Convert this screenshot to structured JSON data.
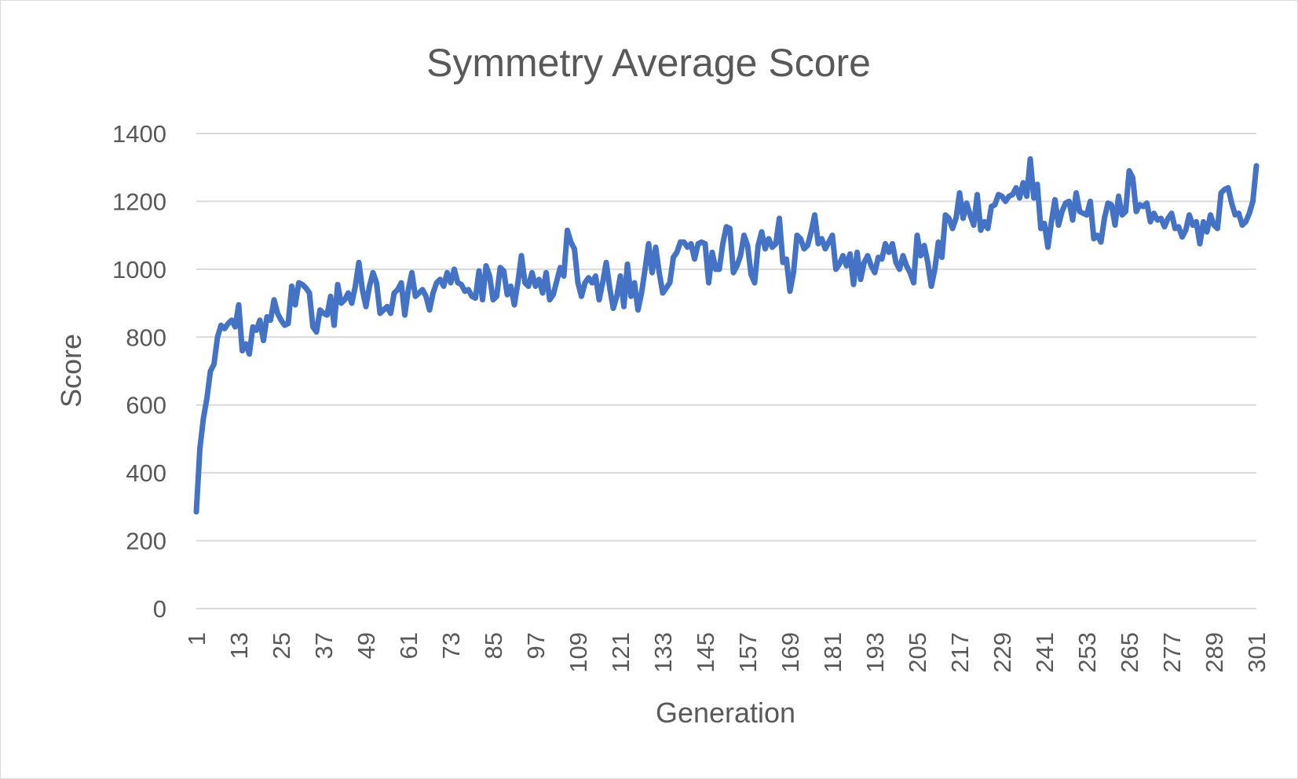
{
  "chart_data": {
    "type": "line",
    "title": "Symmetry Average Score",
    "xlabel": "Generation",
    "ylabel": "Score",
    "ylim": [
      0,
      1400
    ],
    "yticks": [
      0,
      200,
      400,
      600,
      800,
      1000,
      1200,
      1400
    ],
    "x_range": [
      1,
      301
    ],
    "xticks": [
      1,
      13,
      25,
      37,
      49,
      61,
      73,
      85,
      97,
      109,
      121,
      133,
      145,
      157,
      169,
      181,
      193,
      205,
      217,
      229,
      241,
      253,
      265,
      277,
      289,
      301
    ],
    "grid": "horizontal",
    "legend": "none",
    "series_color": "#4472c4",
    "series": [
      {
        "x": [
          1,
          2,
          3,
          4,
          5,
          6,
          7,
          8,
          9,
          10,
          11,
          12,
          13,
          14,
          15,
          16,
          17,
          18,
          19,
          20,
          21,
          22,
          23,
          24,
          25,
          26,
          27,
          28,
          29,
          30,
          31,
          32,
          33,
          34,
          35,
          36,
          37,
          38,
          39,
          40,
          41,
          42,
          43,
          44,
          45,
          46,
          47,
          48,
          49,
          50,
          51,
          52,
          53,
          54,
          55,
          56,
          57,
          58,
          59,
          60,
          61,
          62,
          63,
          64,
          65,
          66,
          67,
          68,
          69,
          70,
          71,
          72,
          73,
          74,
          75,
          76,
          77,
          78,
          79,
          80,
          81,
          82,
          83,
          84,
          85,
          86,
          87,
          88,
          89,
          90,
          91,
          92,
          93,
          94,
          95,
          96,
          97,
          98,
          99,
          100,
          101,
          102,
          103,
          104,
          105,
          106,
          107,
          108,
          109,
          110,
          111,
          112,
          113,
          114,
          115,
          116,
          117,
          118,
          119,
          120,
          121,
          122,
          123,
          124,
          125,
          126,
          127,
          128,
          129,
          130,
          131,
          132,
          133,
          134,
          135,
          136,
          137,
          138,
          139,
          140,
          141,
          142,
          143,
          144,
          145,
          146,
          147,
          148,
          149,
          150,
          151,
          152,
          153,
          154,
          155,
          156,
          157,
          158,
          159,
          160,
          161,
          162,
          163,
          164,
          165,
          166,
          167,
          168,
          169,
          170,
          171,
          172,
          173,
          174,
          175,
          176,
          177,
          178,
          179,
          180,
          181,
          182,
          183,
          184,
          185,
          186,
          187,
          188,
          189,
          190,
          191,
          192,
          193,
          194,
          195,
          196,
          197,
          198,
          199,
          200,
          201,
          202,
          203,
          204,
          205,
          206,
          207,
          208,
          209,
          210,
          211,
          212,
          213,
          214,
          215,
          216,
          217,
          218,
          219,
          220,
          221,
          222,
          223,
          224,
          225,
          226,
          227,
          228,
          229,
          230,
          231,
          232,
          233,
          234,
          235,
          236,
          237,
          238,
          239,
          240,
          241,
          242,
          243,
          244,
          245,
          246,
          247,
          248,
          249,
          250,
          251,
          252,
          253,
          254,
          255,
          256,
          257,
          258,
          259,
          260,
          261,
          262,
          263,
          264,
          265,
          266,
          267,
          268,
          269,
          270,
          271,
          272,
          273,
          274,
          275,
          276,
          277,
          278,
          279,
          280,
          281,
          282,
          283,
          284,
          285,
          286,
          287,
          288,
          289,
          290,
          291,
          292,
          293,
          294,
          295,
          296,
          297,
          298,
          299,
          300,
          301
        ],
        "values": [
          285,
          470,
          560,
          620,
          700,
          720,
          800,
          835,
          825,
          840,
          850,
          830,
          895,
          760,
          780,
          750,
          830,
          820,
          850,
          790,
          860,
          850,
          910,
          870,
          850,
          835,
          840,
          950,
          895,
          960,
          955,
          945,
          930,
          830,
          815,
          880,
          870,
          865,
          920,
          835,
          955,
          900,
          910,
          930,
          900,
          950,
          1020,
          940,
          890,
          950,
          990,
          960,
          870,
          880,
          890,
          870,
          930,
          940,
          960,
          865,
          940,
          990,
          920,
          930,
          940,
          920,
          880,
          930,
          960,
          970,
          950,
          990,
          960,
          1000,
          960,
          955,
          935,
          940,
          920,
          915,
          995,
          910,
          1010,
          980,
          910,
          920,
          1005,
          995,
          925,
          950,
          895,
          960,
          1040,
          960,
          950,
          990,
          950,
          970,
          930,
          990,
          910,
          925,
          965,
          1005,
          980,
          1115,
          1080,
          1060,
          960,
          920,
          960,
          975,
          960,
          980,
          910,
          960,
          1020,
          945,
          885,
          920,
          980,
          890,
          1015,
          920,
          960,
          880,
          930,
          1000,
          1075,
          990,
          1065,
          990,
          930,
          945,
          960,
          1035,
          1050,
          1080,
          1080,
          1065,
          1075,
          1030,
          1075,
          1080,
          1075,
          960,
          1050,
          1000,
          1000,
          1075,
          1125,
          1120,
          990,
          1010,
          1040,
          1100,
          1070,
          985,
          960,
          1070,
          1110,
          1060,
          1090,
          1065,
          1075,
          1150,
          1020,
          1030,
          935,
          990,
          1100,
          1090,
          1060,
          1070,
          1110,
          1160,
          1075,
          1090,
          1060,
          1080,
          1100,
          1000,
          1015,
          1040,
          1010,
          1045,
          955,
          1050,
          970,
          1020,
          1040,
          1010,
          990,
          1035,
          1030,
          1075,
          1050,
          1075,
          1020,
          1000,
          1040,
          1010,
          990,
          960,
          1100,
          1040,
          1070,
          1020,
          950,
          1000,
          1080,
          1035,
          1160,
          1150,
          1120,
          1150,
          1225,
          1150,
          1195,
          1160,
          1130,
          1220,
          1115,
          1140,
          1120,
          1185,
          1190,
          1220,
          1215,
          1200,
          1215,
          1220,
          1240,
          1210,
          1255,
          1215,
          1325,
          1210,
          1250,
          1120,
          1135,
          1065,
          1140,
          1205,
          1130,
          1170,
          1195,
          1200,
          1145,
          1225,
          1170,
          1165,
          1160,
          1200,
          1090,
          1100,
          1080,
          1150,
          1195,
          1190,
          1130,
          1215,
          1160,
          1170,
          1290,
          1270,
          1170,
          1190,
          1185,
          1195,
          1140,
          1165,
          1145,
          1150,
          1125,
          1150,
          1165,
          1120,
          1125,
          1095,
          1115,
          1160,
          1130,
          1140,
          1075,
          1140,
          1110,
          1160,
          1130,
          1120,
          1225,
          1235,
          1240,
          1195,
          1160,
          1165,
          1130,
          1140,
          1165,
          1200,
          1305
        ]
      }
    ]
  }
}
